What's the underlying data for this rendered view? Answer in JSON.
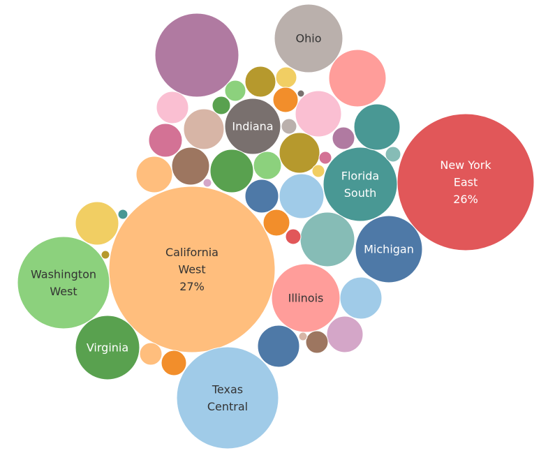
{
  "chart_data": {
    "type": "bubble",
    "title": "",
    "bubbles": [
      {
        "label": [
          "California",
          "West",
          "27%"
        ],
        "color": "#ffbe7d",
        "text_color": "#333333",
        "size": 27
      },
      {
        "label": [
          "New York",
          "East",
          "26%"
        ],
        "color": "#e15759",
        "text_color": "#ffffff",
        "size": 26
      },
      {
        "label": [
          "Texas",
          "Central"
        ],
        "color": "#a0cbe8",
        "text_color": "#333333",
        "size": 14
      },
      {
        "label": [
          "Washington",
          "West"
        ],
        "color": "#8cd17d",
        "text_color": "#333333",
        "size": 12
      },
      {
        "label": [
          "Florida",
          "South"
        ],
        "color": "#499894",
        "text_color": "#ffffff",
        "size": 7.7
      },
      {
        "label": [
          "Michigan"
        ],
        "color": "#4e79a7",
        "text_color": "#ffffff",
        "size": 6.4
      },
      {
        "label": [
          "Ohio"
        ],
        "color": "#bab0ac",
        "text_color": "#333333",
        "size": 6.8
      },
      {
        "label": [
          "Indiana"
        ],
        "color": "#79706e",
        "text_color": "#ffffff",
        "size": 4.5
      },
      {
        "label": [
          "Illinois"
        ],
        "color": "#ff9d9a",
        "text_color": "#333333",
        "size": 6.8
      },
      {
        "label": [
          "Virginia"
        ],
        "color": "#59a14f",
        "text_color": "#ffffff",
        "size": 6.1
      },
      {
        "label": [],
        "color": "#b07aa1",
        "text_color": "#ffffff",
        "size": 10
      },
      {
        "label": [],
        "color": "#ff9d9a",
        "text_color": "#333333",
        "size": 4.7
      },
      {
        "label": [],
        "color": "#499894",
        "text_color": "#ffffff",
        "size": 2.9
      },
      {
        "label": [],
        "color": "#86bcb6",
        "text_color": "#333333",
        "size": 4.3
      },
      {
        "label": [],
        "color": "#fabfd2",
        "text_color": "#333333",
        "size": 3.1
      },
      {
        "label": [],
        "color": "#d4a6c8",
        "text_color": "#333333",
        "size": 1.8
      },
      {
        "label": [],
        "color": "#a0cbe8",
        "text_color": "#333333",
        "size": 2.8
      },
      {
        "label": [],
        "color": "#a0cbe8",
        "text_color": "#333333",
        "size": 2.9
      },
      {
        "label": [],
        "color": "#4e79a7",
        "text_color": "#ffffff",
        "size": 2.6
      },
      {
        "label": [],
        "color": "#4e79a7",
        "text_color": "#ffffff",
        "size": 1.7
      },
      {
        "label": [],
        "color": "#b6992d",
        "text_color": "#ffffff",
        "size": 2.4
      },
      {
        "label": [],
        "color": "#d7b5a6",
        "text_color": "#333333",
        "size": 2.4
      },
      {
        "label": [],
        "color": "#9d7660",
        "text_color": "#ffffff",
        "size": 2.0
      },
      {
        "label": [],
        "color": "#59a14f",
        "text_color": "#ffffff",
        "size": 2.7
      },
      {
        "label": [],
        "color": "#ffbe7d",
        "text_color": "#333333",
        "size": 1.8
      },
      {
        "label": [],
        "color": "#f1ce63",
        "text_color": "#333333",
        "size": 2.7
      },
      {
        "label": [],
        "color": "#d37295",
        "text_color": "#ffffff",
        "size": 1.7
      },
      {
        "label": [],
        "color": "#fabfd2",
        "text_color": "#333333",
        "size": 1.6
      },
      {
        "label": [],
        "color": "#b6992d",
        "text_color": "#ffffff",
        "size": 1.5
      },
      {
        "label": [],
        "color": "#8cd17d",
        "text_color": "#333333",
        "size": 1.1
      },
      {
        "label": [],
        "color": "#f28e2b",
        "text_color": "#ffffff",
        "size": 0.9
      },
      {
        "label": [],
        "color": "#8cd17d",
        "text_color": "#333333",
        "size": 0.6
      },
      {
        "label": [],
        "color": "#59a14f",
        "text_color": "#ffffff",
        "size": 0.5
      },
      {
        "label": [],
        "color": "#f1ce63",
        "text_color": "#333333",
        "size": 0.6
      },
      {
        "label": [],
        "color": "#bab0ac",
        "text_color": "#333333",
        "size": 0.4
      },
      {
        "label": [],
        "color": "#b07aa1",
        "text_color": "#ffffff",
        "size": 0.7
      },
      {
        "label": [],
        "color": "#86bcb6",
        "text_color": "#333333",
        "size": 0.4
      },
      {
        "label": [],
        "color": "#f28e2b",
        "text_color": "#ffffff",
        "size": 0.9
      },
      {
        "label": [],
        "color": "#e15759",
        "text_color": "#ffffff",
        "size": 0.4
      },
      {
        "label": [],
        "color": "#9d7660",
        "text_color": "#ffffff",
        "size": 0.7
      },
      {
        "label": [],
        "color": "#d37295",
        "text_color": "#ffffff",
        "size": 0.3
      },
      {
        "label": [],
        "color": "#f1ce63",
        "text_color": "#333333",
        "size": 0.3
      },
      {
        "label": [],
        "color": "#499894",
        "text_color": "#ffffff",
        "size": 0.16
      },
      {
        "label": [],
        "color": "#b6992d",
        "text_color": "#ffffff",
        "size": 0.12
      },
      {
        "label": [],
        "color": "#79706e",
        "text_color": "#ffffff",
        "size": 0.1
      },
      {
        "label": [],
        "color": "#d4a6c8",
        "text_color": "#333333",
        "size": 0.1
      },
      {
        "label": [],
        "color": "#d7b5a6",
        "text_color": "#333333",
        "size": 0.1
      },
      {
        "label": [],
        "color": "#f28e2b",
        "text_color": "#ffffff",
        "size": 1.1
      },
      {
        "label": [],
        "color": "#ffbe7d",
        "text_color": "#333333",
        "size": 1.6
      }
    ]
  }
}
